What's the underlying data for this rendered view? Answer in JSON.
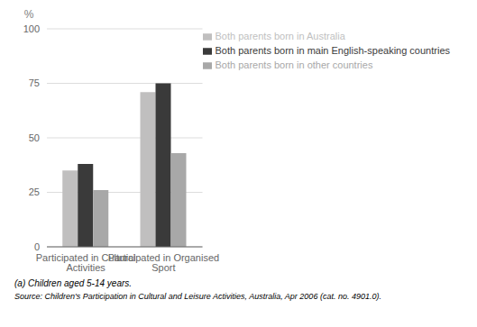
{
  "chart_data": {
    "type": "bar",
    "categories": [
      "Participated in Cultural Activities",
      "Participated in Organised Sport"
    ],
    "series": [
      {
        "name": "Both parents born in Australia",
        "color": "#c0bfbf",
        "values": [
          35,
          71
        ]
      },
      {
        "name": "Both parents born in main English-speaking countries",
        "color": "#3a3a3a",
        "values": [
          38,
          75
        ]
      },
      {
        "name": "Both parents born in other countries",
        "color": "#a8a8a8",
        "values": [
          26,
          43
        ]
      }
    ],
    "ylabel": "%",
    "ylim": [
      0,
      100
    ],
    "yticks": [
      0,
      25,
      50,
      75,
      100
    ],
    "grid": true,
    "legend": "upper right",
    "annotations": [
      "(a) Children aged 5-14 years.",
      "Source: Children's Participation in Cultural and Leisure Activities, Australia, Apr 2006 (cat. no. 4901.0)."
    ]
  }
}
